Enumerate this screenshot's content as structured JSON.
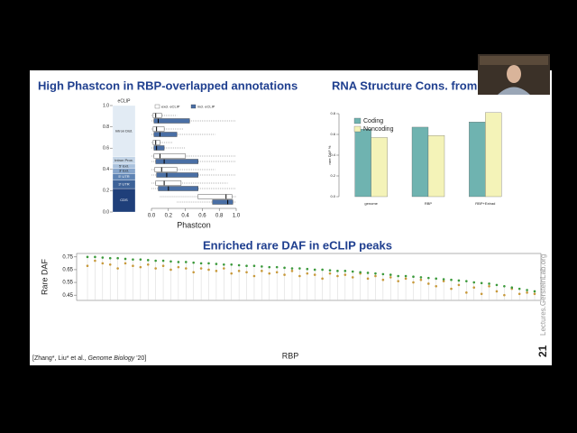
{
  "slide": {
    "title_left": "High Phastcon in RBP-overlapped annotations",
    "title_right": "RNA Structure Cons. from",
    "citation": {
      "prefix": "[Zhang*, Liu* et al., ",
      "journal": "Genome Biology",
      "suffix": " '20]"
    },
    "page_number": "21",
    "watermark": "Lectures.GersteinLab.org"
  },
  "chart_data": [
    {
      "type": "stacked_bar",
      "title": "eCLIP",
      "series": [
        {
          "name": "CDS",
          "color": "#1f3f7a",
          "values": [
            0.22
          ]
        },
        {
          "name": "3' UTR",
          "color": "#3d6298",
          "values": [
            0.08
          ]
        },
        {
          "name": "5' UTR",
          "color": "#5f84b4",
          "values": [
            0.06
          ]
        },
        {
          "name": "3' Ext.",
          "color": "#86a5cb",
          "values": [
            0.05
          ]
        },
        {
          "name": "5' Ext.",
          "color": "#a9c1dc",
          "values": [
            0.04
          ]
        },
        {
          "name": "Intron Prox.",
          "color": "#c5d6e8",
          "values": [
            0.07
          ]
        },
        {
          "name": "Intron Dist.",
          "color": "#e2ebf4",
          "values": [
            0.48
          ]
        }
      ],
      "ylim": [
        0,
        1
      ],
      "yticks": [
        {
          "value": 0,
          "label": "0.0"
        },
        {
          "value": 0.2,
          "label": "0.2"
        },
        {
          "value": 0.4,
          "label": "0.4"
        },
        {
          "value": 0.6,
          "label": "0.6"
        },
        {
          "value": 0.8,
          "label": "0.8"
        },
        {
          "value": 1,
          "label": "1.0"
        }
      ]
    },
    {
      "type": "box",
      "xlabel": "Phastcon",
      "legend": "top",
      "series": [
        {
          "name": "excl. eCLIP",
          "color": "#ffffff",
          "boxes": [
            {
              "low": 0,
              "q1": 0.02,
              "median": 0.05,
              "q3": 0.12,
              "high": 0.3
            },
            {
              "low": 0,
              "q1": 0.02,
              "median": 0.06,
              "q3": 0.15,
              "high": 0.38
            },
            {
              "low": 0,
              "q1": 0.02,
              "median": 0.05,
              "q3": 0.1,
              "high": 0.25
            },
            {
              "low": 0,
              "q1": 0.03,
              "median": 0.1,
              "q3": 0.4,
              "high": 1
            },
            {
              "low": 0,
              "q1": 0.04,
              "median": 0.12,
              "q3": 0.3,
              "high": 0.75
            },
            {
              "low": 0,
              "q1": 0.05,
              "median": 0.15,
              "q3": 0.35,
              "high": 0.9
            },
            {
              "low": 0.1,
              "q1": 0.55,
              "median": 0.88,
              "q3": 0.95,
              "high": 1
            }
          ]
        },
        {
          "name": "incl. eCLIP",
          "color": "#4a6fa5",
          "boxes": [
            {
              "low": 0,
              "q1": 0.03,
              "median": 0.08,
              "q3": 0.45,
              "high": 1
            },
            {
              "low": 0,
              "q1": 0.03,
              "median": 0.1,
              "q3": 0.3,
              "high": 0.75
            },
            {
              "low": 0,
              "q1": 0.03,
              "median": 0.06,
              "q3": 0.15,
              "high": 0.4
            },
            {
              "low": 0,
              "q1": 0.05,
              "median": 0.15,
              "q3": 0.55,
              "high": 1
            },
            {
              "low": 0,
              "q1": 0.06,
              "median": 0.18,
              "q3": 0.55,
              "high": 1
            },
            {
              "low": 0,
              "q1": 0.08,
              "median": 0.2,
              "q3": 0.55,
              "high": 1
            },
            {
              "low": 0.3,
              "q1": 0.72,
              "median": 0.9,
              "q3": 0.96,
              "high": 1
            }
          ]
        }
      ],
      "xlim": [
        0,
        1
      ],
      "xticks": [
        {
          "value": 0,
          "label": "0.0"
        },
        {
          "value": 0.2,
          "label": "0.2"
        },
        {
          "value": 0.4,
          "label": "0.4"
        },
        {
          "value": 0.6,
          "label": "0.6"
        },
        {
          "value": 0.8,
          "label": "0.8"
        },
        {
          "value": 1,
          "label": "1.0"
        }
      ]
    },
    {
      "type": "bar",
      "ylabel": "rare DAF %",
      "legend": "top-left",
      "categories": [
        "genome",
        "RBP",
        "RBP+Extrad"
      ],
      "series": [
        {
          "name": "Coding",
          "color": "#6fb3b0",
          "values": [
            0.65,
            0.67,
            0.72
          ]
        },
        {
          "name": "Noncoding",
          "color": "#f4f3b8",
          "values": [
            0.57,
            0.59,
            0.81
          ]
        }
      ],
      "ylim": [
        0,
        0.8
      ],
      "yticks": [
        {
          "value": 0,
          "label": "0.0"
        },
        {
          "value": 0.2,
          "label": "0.2"
        },
        {
          "value": 0.4,
          "label": "0.4"
        },
        {
          "value": 0.6,
          "label": "0.6"
        },
        {
          "value": 0.8,
          "label": "0.8"
        }
      ]
    },
    {
      "type": "dot",
      "title": "Enriched rare DAF in eCLIP peaks",
      "xlabel": "RBP",
      "ylabel": "Rare DAF",
      "series": [
        {
          "color": "#3c9a3c",
          "values": [
            0.75,
            0.75,
            0.745,
            0.74,
            0.74,
            0.735,
            0.73,
            0.73,
            0.725,
            0.72,
            0.72,
            0.715,
            0.71,
            0.71,
            0.705,
            0.7,
            0.7,
            0.695,
            0.69,
            0.69,
            0.685,
            0.68,
            0.68,
            0.675,
            0.67,
            0.67,
            0.665,
            0.66,
            0.66,
            0.655,
            0.65,
            0.65,
            0.645,
            0.64,
            0.64,
            0.635,
            0.63,
            0.625,
            0.62,
            0.615,
            0.61,
            0.6,
            0.6,
            0.595,
            0.59,
            0.585,
            0.58,
            0.575,
            0.57,
            0.565,
            0.56,
            0.55,
            0.545,
            0.54,
            0.53,
            0.52,
            0.51,
            0.5,
            0.49,
            0.48
          ]
        },
        {
          "color": "#c89a3c",
          "values": [
            0.68,
            0.72,
            0.7,
            0.69,
            0.66,
            0.7,
            0.68,
            0.67,
            0.69,
            0.66,
            0.68,
            0.65,
            0.67,
            0.66,
            0.63,
            0.66,
            0.65,
            0.64,
            0.66,
            0.62,
            0.64,
            0.63,
            0.6,
            0.64,
            0.62,
            0.63,
            0.61,
            0.64,
            0.6,
            0.62,
            0.61,
            0.58,
            0.62,
            0.6,
            0.61,
            0.59,
            0.62,
            0.58,
            0.6,
            0.57,
            0.59,
            0.56,
            0.58,
            0.55,
            0.57,
            0.54,
            0.52,
            0.56,
            0.5,
            0.53,
            0.47,
            0.51,
            0.46,
            0.52,
            0.48,
            0.45,
            0.5,
            0.46,
            0.47,
            0.46
          ]
        }
      ],
      "ylim": [
        0.43,
        0.77
      ],
      "yticks": [
        0.45,
        0.55,
        0.65,
        0.75
      ]
    }
  ]
}
